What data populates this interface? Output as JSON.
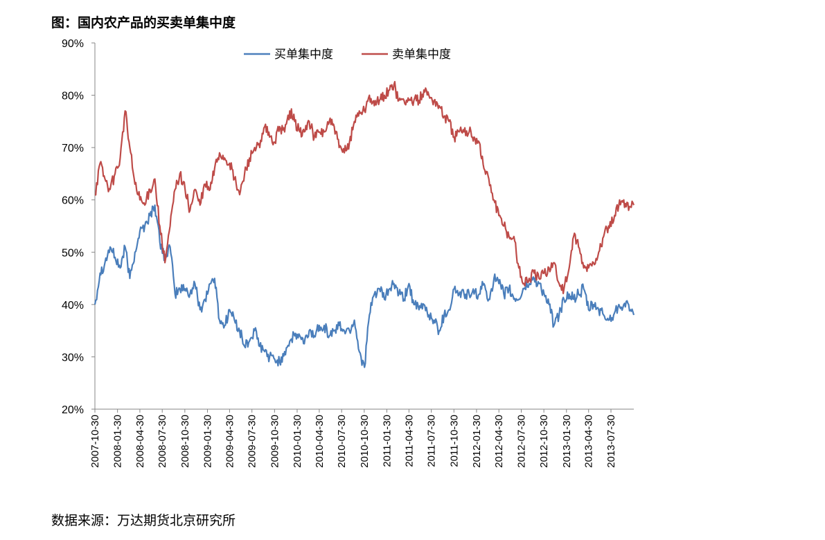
{
  "figure": {
    "title": "图：国内农产品的买卖单集中度",
    "source": "数据来源：万达期货北京研究所"
  },
  "chart_data": {
    "type": "line",
    "title": "图：国内农产品的买卖单集中度",
    "xlabel": "",
    "ylabel": "",
    "y_unit": "%",
    "ylim": [
      20,
      90
    ],
    "y_ticks": [
      20,
      30,
      40,
      50,
      60,
      70,
      80,
      90
    ],
    "y_tick_labels": [
      "20%",
      "30%",
      "40%",
      "50%",
      "60%",
      "70%",
      "80%",
      "90%"
    ],
    "x_start": "2007-10-30",
    "x_end": "2013-10-31",
    "x_tick_labels": [
      "2007-10-30",
      "2008-01-30",
      "2008-04-30",
      "2008-07-30",
      "2008-10-30",
      "2009-01-30",
      "2009-04-30",
      "2009-07-30",
      "2009-10-30",
      "2010-01-30",
      "2010-04-30",
      "2010-07-30",
      "2010-10-30",
      "2011-01-30",
      "2011-04-30",
      "2011-07-30",
      "2011-10-30",
      "2012-01-30",
      "2012-04-30",
      "2012-07-30",
      "2012-10-30",
      "2013-01-30",
      "2013-04-30",
      "2013-07-30"
    ],
    "grid": false,
    "legend_position": "top-center",
    "series": [
      {
        "name": "买单集中度",
        "color": "#4a7ebb",
        "x": [
          "2007-10-30",
          "2007-11-20",
          "2007-12-10",
          "2007-12-31",
          "2008-01-20",
          "2008-02-10",
          "2008-03-01",
          "2008-03-20",
          "2008-04-10",
          "2008-04-30",
          "2008-05-20",
          "2008-06-10",
          "2008-06-30",
          "2008-07-20",
          "2008-08-10",
          "2008-08-31",
          "2008-09-20",
          "2008-10-10",
          "2008-10-31",
          "2008-11-20",
          "2008-12-10",
          "2008-12-31",
          "2009-01-20",
          "2009-02-10",
          "2009-02-28",
          "2009-03-20",
          "2009-04-10",
          "2009-04-30",
          "2009-05-20",
          "2009-06-10",
          "2009-06-30",
          "2009-07-20",
          "2009-08-10",
          "2009-08-31",
          "2009-09-20",
          "2009-10-10",
          "2009-10-31",
          "2009-11-20",
          "2009-12-10",
          "2009-12-31",
          "2010-01-20",
          "2010-02-10",
          "2010-02-28",
          "2010-03-20",
          "2010-04-10",
          "2010-04-30",
          "2010-05-20",
          "2010-06-10",
          "2010-06-30",
          "2010-07-20",
          "2010-08-10",
          "2010-08-31",
          "2010-09-20",
          "2010-10-10",
          "2010-10-31",
          "2010-11-20",
          "2010-12-10",
          "2010-12-31",
          "2011-01-20",
          "2011-02-10",
          "2011-02-28",
          "2011-03-20",
          "2011-04-10",
          "2011-04-30",
          "2011-05-20",
          "2011-06-10",
          "2011-06-30",
          "2011-07-20",
          "2011-08-10",
          "2011-08-31",
          "2011-09-20",
          "2011-10-10",
          "2011-10-31",
          "2011-11-20",
          "2011-12-10",
          "2011-12-31",
          "2012-01-20",
          "2012-02-10",
          "2012-02-29",
          "2012-03-20",
          "2012-04-10",
          "2012-04-30",
          "2012-05-20",
          "2012-06-10",
          "2012-06-30",
          "2012-07-20",
          "2012-08-10",
          "2012-08-31",
          "2012-09-20",
          "2012-10-10",
          "2012-10-31",
          "2012-11-20",
          "2012-12-10",
          "2012-12-31",
          "2013-01-20",
          "2013-02-10",
          "2013-02-28",
          "2013-03-20",
          "2013-04-10",
          "2013-04-30",
          "2013-05-20",
          "2013-06-10",
          "2013-06-30",
          "2013-07-20",
          "2013-08-10",
          "2013-08-31",
          "2013-09-20",
          "2013-10-10",
          "2013-10-31"
        ],
        "values": [
          40,
          46,
          48,
          51,
          49,
          47,
          51,
          45,
          50,
          54,
          55,
          57,
          59,
          52,
          49,
          51,
          42,
          43,
          43,
          42,
          44,
          39,
          41,
          44,
          45,
          37,
          36,
          39,
          37,
          35,
          32,
          33,
          35,
          32,
          31,
          30,
          29.5,
          29,
          31,
          33,
          34,
          34,
          32.5,
          35,
          34,
          36,
          36,
          34,
          35,
          36,
          35,
          35,
          37,
          31,
          28,
          38,
          42,
          43,
          41,
          43,
          44,
          42,
          41,
          44,
          40,
          39,
          40,
          38,
          37,
          35,
          38,
          39,
          43,
          42,
          42,
          42,
          42,
          42,
          44,
          41,
          45,
          44,
          42,
          43,
          41,
          41,
          43,
          44,
          45,
          44,
          42,
          40,
          36,
          38,
          41,
          42,
          41,
          42,
          43,
          39,
          40,
          39,
          38,
          37,
          38,
          40,
          40,
          40,
          38
        ]
      },
      {
        "name": "卖单集中度",
        "color": "#be4b48",
        "x": [
          "2007-10-30",
          "2007-11-20",
          "2007-12-10",
          "2007-12-31",
          "2008-01-20",
          "2008-02-10",
          "2008-03-01",
          "2008-03-20",
          "2008-04-10",
          "2008-04-30",
          "2008-05-20",
          "2008-06-10",
          "2008-06-30",
          "2008-07-20",
          "2008-08-10",
          "2008-08-31",
          "2008-09-20",
          "2008-10-10",
          "2008-10-31",
          "2008-11-20",
          "2008-12-10",
          "2008-12-31",
          "2009-01-20",
          "2009-02-10",
          "2009-02-28",
          "2009-03-20",
          "2009-04-10",
          "2009-04-30",
          "2009-05-20",
          "2009-06-10",
          "2009-06-30",
          "2009-07-20",
          "2009-08-10",
          "2009-08-31",
          "2009-09-20",
          "2009-10-10",
          "2009-10-31",
          "2009-11-20",
          "2009-12-10",
          "2009-12-31",
          "2010-01-20",
          "2010-02-10",
          "2010-02-28",
          "2010-03-20",
          "2010-04-10",
          "2010-04-30",
          "2010-05-20",
          "2010-06-10",
          "2010-06-30",
          "2010-07-20",
          "2010-08-10",
          "2010-08-31",
          "2010-09-20",
          "2010-10-10",
          "2010-10-31",
          "2010-11-20",
          "2010-12-10",
          "2010-12-31",
          "2011-01-20",
          "2011-02-10",
          "2011-02-28",
          "2011-03-20",
          "2011-04-10",
          "2011-04-30",
          "2011-05-20",
          "2011-06-10",
          "2011-06-30",
          "2011-07-20",
          "2011-08-10",
          "2011-08-31",
          "2011-09-20",
          "2011-10-10",
          "2011-10-31",
          "2011-11-20",
          "2011-12-10",
          "2011-12-31",
          "2012-01-20",
          "2012-02-10",
          "2012-02-29",
          "2012-03-20",
          "2012-04-10",
          "2012-04-30",
          "2012-05-20",
          "2012-06-10",
          "2012-06-30",
          "2012-07-20",
          "2012-08-10",
          "2012-08-31",
          "2012-09-20",
          "2012-10-10",
          "2012-10-31",
          "2012-11-20",
          "2012-12-10",
          "2012-12-31",
          "2013-01-20",
          "2013-02-10",
          "2013-02-28",
          "2013-03-20",
          "2013-04-10",
          "2013-04-30",
          "2013-05-20",
          "2013-06-10",
          "2013-06-30",
          "2013-07-20",
          "2013-08-10",
          "2013-08-31",
          "2013-09-20",
          "2013-10-10",
          "2013-10-31"
        ],
        "values": [
          61,
          67,
          64,
          62,
          65,
          68,
          77,
          70,
          63,
          60,
          59,
          62,
          64,
          55,
          48,
          55,
          62,
          65,
          62,
          58,
          62,
          59,
          63,
          62,
          66,
          69,
          68,
          67,
          64,
          61,
          65,
          68,
          70,
          70,
          74,
          72,
          71,
          74,
          73,
          77,
          75,
          73,
          73,
          75,
          72,
          73,
          73,
          75,
          74,
          70,
          69,
          71,
          75,
          77,
          77,
          80,
          78,
          79,
          80,
          81,
          82,
          79,
          79,
          79,
          79,
          79,
          81,
          80,
          79,
          78,
          76,
          75,
          72,
          73,
          73,
          73,
          72,
          71,
          66,
          64,
          60,
          57,
          55,
          53,
          53,
          47,
          44,
          45,
          46,
          45,
          46,
          47,
          48,
          44,
          43,
          47,
          53,
          51,
          47,
          47,
          48,
          50,
          53,
          55,
          56,
          59,
          60,
          58,
          59
        ]
      }
    ]
  }
}
